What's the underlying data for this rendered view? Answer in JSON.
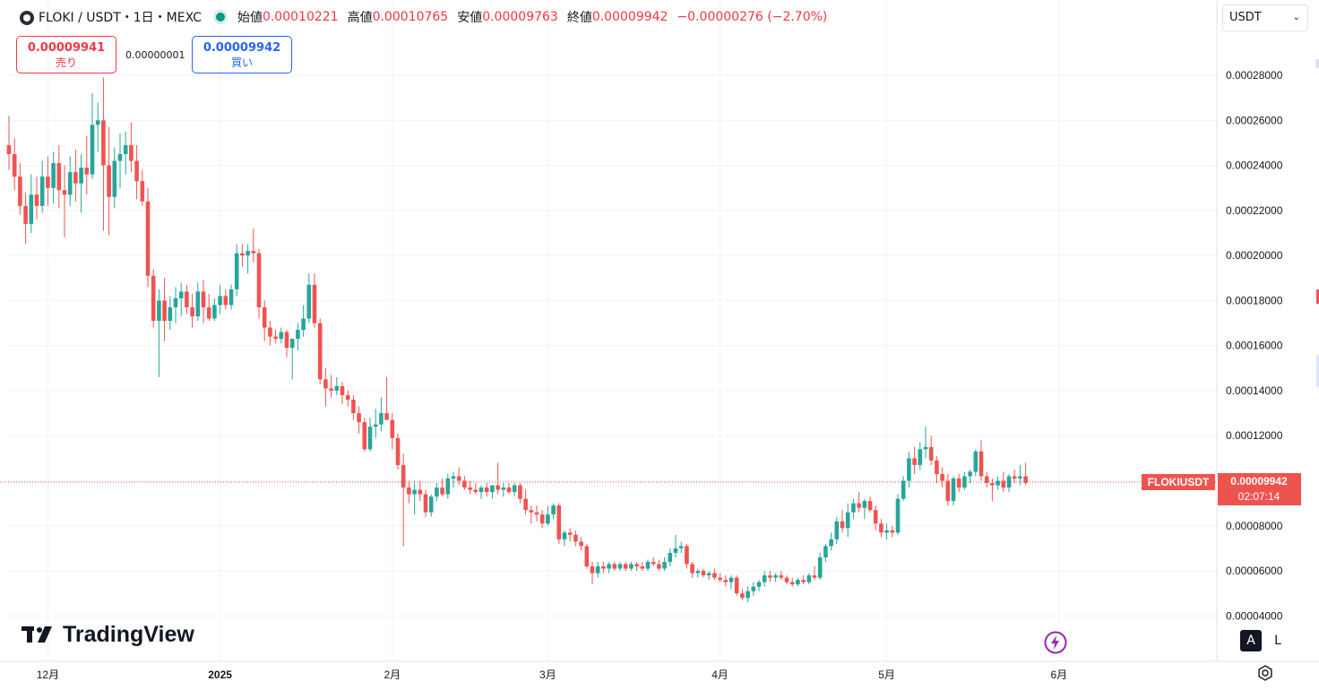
{
  "legend": {
    "symbol": "FLOKI / USDT・1日・MEXC",
    "open_label": "始値",
    "open": "0.00010221",
    "high_label": "高値",
    "high": "0.00010765",
    "low_label": "安値",
    "low": "0.00009763",
    "close_label": "終値",
    "close": "0.00009942",
    "change": "−0.00000276 (−2.70%)"
  },
  "trade": {
    "sell_price": "0.00009941",
    "sell_label": "売り",
    "spread": "0.00000001",
    "buy_price": "0.00009942",
    "buy_label": "買い"
  },
  "currency_selector": "USDT",
  "price_label": {
    "ticker": "FLOKIUSDT",
    "price": "0.00009942",
    "countdown": "02:07:14"
  },
  "branding": "TradingView",
  "scale_buttons": {
    "auto": "A",
    "log": "L"
  },
  "colors": {
    "up": "#26a69a",
    "down": "#ef5350",
    "grid": "#f0f3fa",
    "price_line": "#ef5350"
  },
  "chart_data": {
    "type": "candlestick",
    "title": "FLOKI / USDT・1日・MEXC",
    "ylim": [
      3e-05,
      0.000305
    ],
    "y_ticks": [
      "0.00004000",
      "0.00006000",
      "0.00008000",
      "0.00010000",
      "0.00012000",
      "0.00014000",
      "0.00016000",
      "0.00018000",
      "0.00020000",
      "0.00022000",
      "0.00024000",
      "0.00026000",
      "0.00028000"
    ],
    "y_tick_values": [
      4e-05,
      6e-05,
      8e-05,
      0.0001,
      0.00012,
      0.00014,
      0.00016,
      0.00018,
      0.0002,
      0.00022,
      0.00024,
      0.00026,
      0.00028
    ],
    "x_ticks": [
      {
        "label": "12月",
        "bar": 7
      },
      {
        "label": "2025",
        "bar": 38
      },
      {
        "label": "2月",
        "bar": 69
      },
      {
        "label": "3月",
        "bar": 97
      },
      {
        "label": "4月",
        "bar": 128
      },
      {
        "label": "5月",
        "bar": 158
      },
      {
        "label": "6月",
        "bar": 189
      }
    ],
    "bars_total_span": 194,
    "candles": [
      [
        0.000249,
        0.000262,
        0.000238,
        0.000245
      ],
      [
        0.000245,
        0.000252,
        0.000229,
        0.000235
      ],
      [
        0.000235,
        0.000241,
        0.000218,
        0.000222
      ],
      [
        0.000222,
        0.000228,
        0.000205,
        0.000214
      ],
      [
        0.000214,
        0.000236,
        0.00021,
        0.000227
      ],
      [
        0.000227,
        0.000235,
        0.000216,
        0.000222
      ],
      [
        0.000222,
        0.000242,
        0.000219,
        0.000235
      ],
      [
        0.000235,
        0.000244,
        0.000222,
        0.00023
      ],
      [
        0.00023,
        0.000246,
        0.000223,
        0.000241
      ],
      [
        0.000241,
        0.000249,
        0.000221,
        0.000229
      ],
      [
        0.000229,
        0.00024,
        0.000208,
        0.000227
      ],
      [
        0.000227,
        0.000244,
        0.000222,
        0.000237
      ],
      [
        0.000237,
        0.000247,
        0.000224,
        0.000232
      ],
      [
        0.000232,
        0.000245,
        0.000219,
        0.000239
      ],
      [
        0.000239,
        0.000253,
        0.000227,
        0.000236
      ],
      [
        0.000236,
        0.000272,
        0.000234,
        0.000258
      ],
      [
        0.000258,
        0.000268,
        0.000246,
        0.00026
      ],
      [
        0.00026,
        0.000279,
        0.000211,
        0.00024
      ],
      [
        0.00024,
        0.000257,
        0.000209,
        0.000226
      ],
      [
        0.000226,
        0.000248,
        0.000221,
        0.000242
      ],
      [
        0.000242,
        0.000254,
        0.00023,
        0.000245
      ],
      [
        0.000245,
        0.000255,
        0.000236,
        0.000249
      ],
      [
        0.000249,
        0.000259,
        0.000237,
        0.000242
      ],
      [
        0.000242,
        0.000249,
        0.000225,
        0.000233
      ],
      [
        0.000233,
        0.000238,
        0.000222,
        0.000224
      ],
      [
        0.000224,
        0.00023,
        0.000186,
        0.000191
      ],
      [
        0.000191,
        0.000194,
        0.000168,
        0.000171
      ],
      [
        0.000171,
        0.000185,
        0.000146,
        0.00018
      ],
      [
        0.00018,
        0.00019,
        0.000162,
        0.000171
      ],
      [
        0.000171,
        0.000182,
        0.000167,
        0.000177
      ],
      [
        0.000177,
        0.000186,
        0.00017,
        0.000181
      ],
      [
        0.000181,
        0.000188,
        0.000173,
        0.000184
      ],
      [
        0.000184,
        0.000187,
        0.000174,
        0.000177
      ],
      [
        0.000177,
        0.000183,
        0.000168,
        0.000173
      ],
      [
        0.000173,
        0.000188,
        0.000171,
        0.000184
      ],
      [
        0.000184,
        0.000189,
        0.00017,
        0.000177
      ],
      [
        0.000177,
        0.000183,
        0.000171,
        0.000172
      ],
      [
        0.000172,
        0.000181,
        0.000171,
        0.000178
      ],
      [
        0.000178,
        0.000187,
        0.000174,
        0.000182
      ],
      [
        0.000182,
        0.000185,
        0.000176,
        0.000178
      ],
      [
        0.000178,
        0.000187,
        0.000176,
        0.000185
      ],
      [
        0.000185,
        0.000205,
        0.000182,
        0.000201
      ],
      [
        0.000201,
        0.000205,
        0.000195,
        0.0002
      ],
      [
        0.0002,
        0.000205,
        0.000192,
        0.000202
      ],
      [
        0.000202,
        0.000212,
        0.000197,
        0.000201
      ],
      [
        0.000201,
        0.000203,
        0.000172,
        0.000177
      ],
      [
        0.000177,
        0.00018,
        0.000162,
        0.000168
      ],
      [
        0.000168,
        0.000171,
        0.00016,
        0.000164
      ],
      [
        0.000164,
        0.000167,
        0.000161,
        0.000163
      ],
      [
        0.000163,
        0.000168,
        0.000161,
        0.000166
      ],
      [
        0.000166,
        0.000167,
        0.000155,
        0.000159
      ],
      [
        0.000159,
        0.000163,
        0.000145,
        0.000163
      ],
      [
        0.000163,
        0.00017,
        0.000158,
        0.000167
      ],
      [
        0.000167,
        0.000178,
        0.000164,
        0.000172
      ],
      [
        0.000172,
        0.000192,
        0.00017,
        0.000187
      ],
      [
        0.000187,
        0.000192,
        0.000168,
        0.00017
      ],
      [
        0.00017,
        0.000172,
        0.000143,
        0.000145
      ],
      [
        0.000145,
        0.00015,
        0.000133,
        0.000141
      ],
      [
        0.000141,
        0.000147,
        0.000137,
        0.00014
      ],
      [
        0.00014,
        0.000146,
        0.000138,
        0.000142
      ],
      [
        0.000142,
        0.000144,
        0.000134,
        0.000138
      ],
      [
        0.000138,
        0.00014,
        0.000133,
        0.000136
      ],
      [
        0.000136,
        0.000138,
        0.000127,
        0.00013
      ],
      [
        0.00013,
        0.000133,
        0.000121,
        0.000126
      ],
      [
        0.000126,
        0.000128,
        0.000113,
        0.000114
      ],
      [
        0.000114,
        0.000128,
        0.000113,
        0.000124
      ],
      [
        0.000124,
        0.000132,
        0.000119,
        0.000125
      ],
      [
        0.000125,
        0.000137,
        0.000122,
        0.00013
      ],
      [
        0.00013,
        0.000146,
        0.000128,
        0.000127
      ],
      [
        0.000127,
        0.00013,
        0.000114,
        0.000119
      ],
      [
        0.000119,
        0.000121,
        0.000105,
        0.000107
      ],
      [
        0.000107,
        0.000112,
        7.1e-05,
        9.7e-05
      ],
      [
        9.7e-05,
        0.0001,
        9e-05,
        9.4e-05
      ],
      [
        9.4e-05,
        0.0001,
        8.5e-05,
        9.6e-05
      ],
      [
        9.6e-05,
        0.0001,
        9.1e-05,
        9.4e-05
      ],
      [
        9.4e-05,
        9.6e-05,
        8.4e-05,
        8.6e-05
      ],
      [
        8.6e-05,
        9.4e-05,
        8.4e-05,
        9.3e-05
      ],
      [
        9.3e-05,
        9.9e-05,
        9.1e-05,
        9.7e-05
      ],
      [
        9.7e-05,
        0.000101,
        9.3e-05,
        9.4e-05
      ],
      [
        9.4e-05,
        0.000103,
        9.2e-05,
        0.000101
      ],
      [
        0.000101,
        0.000104,
        9.7e-05,
        0.000102
      ],
      [
        0.000102,
        0.000106,
        9.8e-05,
        0.0001
      ],
      [
        0.0001,
        0.000102,
        9.6e-05,
        9.7e-05
      ],
      [
        9.7e-05,
        0.0001,
        9.4e-05,
        9.6e-05
      ],
      [
        9.6e-05,
        9.9e-05,
        9.4e-05,
        9.5e-05
      ],
      [
        9.5e-05,
        9.8e-05,
        9.2e-05,
        9.7e-05
      ],
      [
        9.7e-05,
        9.9e-05,
        9.3e-05,
        9.5e-05
      ],
      [
        9.5e-05,
        9.8e-05,
        9.2e-05,
        9.8e-05
      ],
      [
        9.8e-05,
        0.000108,
        9.4e-05,
        9.6e-05
      ],
      [
        9.6e-05,
        9.9e-05,
        9.3e-05,
        9.7e-05
      ],
      [
        9.7e-05,
        9.9e-05,
        9.4e-05,
        9.5e-05
      ],
      [
        9.5e-05,
        9.9e-05,
        9.3e-05,
        9.8e-05
      ],
      [
        9.8e-05,
        9.9e-05,
        9e-05,
        9.2e-05
      ],
      [
        9.2e-05,
        9.6e-05,
        8.5e-05,
        8.7e-05
      ],
      [
        8.7e-05,
        8.9e-05,
        8.1e-05,
        8.6e-05
      ],
      [
        8.6e-05,
        8.9e-05,
        8.2e-05,
        8.5e-05
      ],
      [
        8.5e-05,
        8.7e-05,
        7.9e-05,
        8.1e-05
      ],
      [
        8.1e-05,
        8.9e-05,
        8e-05,
        8.5e-05
      ],
      [
        8.5e-05,
        9e-05,
        8.3e-05,
        8.9e-05
      ],
      [
        8.9e-05,
        9e-05,
        7.2e-05,
        7.4e-05
      ],
      [
        7.4e-05,
        7.8e-05,
        7.1e-05,
        7.7e-05
      ],
      [
        7.7e-05,
        7.9e-05,
        7.3e-05,
        7.6e-05
      ],
      [
        7.6e-05,
        7.8e-05,
        7.1e-05,
        7.3e-05
      ],
      [
        7.3e-05,
        7.5e-05,
        6.9e-05,
        7.1e-05
      ],
      [
        7.1e-05,
        7.2e-05,
        6.1e-05,
        6.2e-05
      ],
      [
        6.2e-05,
        6.4e-05,
        5.4e-05,
        5.9e-05
      ],
      [
        5.9e-05,
        6.4e-05,
        5.7e-05,
        6.2e-05
      ],
      [
        6.2e-05,
        6.4e-05,
        5.9e-05,
        6.1e-05
      ],
      [
        6.1e-05,
        6.4e-05,
        5.9e-05,
        6.3e-05
      ],
      [
        6.3e-05,
        6.4e-05,
        6e-05,
        6.1e-05
      ],
      [
        6.1e-05,
        6.4e-05,
        6e-05,
        6.3e-05
      ],
      [
        6.3e-05,
        6.4e-05,
        6e-05,
        6.1e-05
      ],
      [
        6.1e-05,
        6.4e-05,
        6e-05,
        6.3e-05
      ],
      [
        6.3e-05,
        6.4e-05,
        6e-05,
        6.2e-05
      ],
      [
        6.2e-05,
        6.4e-05,
        6e-05,
        6.1e-05
      ],
      [
        6.1e-05,
        6.5e-05,
        6e-05,
        6.4e-05
      ],
      [
        6.4e-05,
        6.6e-05,
        6.2e-05,
        6.3e-05
      ],
      [
        6.3e-05,
        6.5e-05,
        6e-05,
        6.1e-05
      ],
      [
        6.1e-05,
        6.6e-05,
        6e-05,
        6.4e-05
      ],
      [
        6.4e-05,
        7e-05,
        6.2e-05,
        6.8e-05
      ],
      [
        6.8e-05,
        7.6e-05,
        6.6e-05,
        7e-05
      ],
      [
        7e-05,
        7.3e-05,
        6.8e-05,
        7.1e-05
      ],
      [
        7.1e-05,
        7.2e-05,
        6.1e-05,
        6.3e-05
      ],
      [
        6.3e-05,
        6.4e-05,
        5.7e-05,
        5.9e-05
      ],
      [
        5.9e-05,
        6.1e-05,
        5.7e-05,
        6e-05
      ],
      [
        6e-05,
        6.1e-05,
        5.7e-05,
        5.8e-05
      ],
      [
        5.8e-05,
        6e-05,
        5.6e-05,
        5.9e-05
      ],
      [
        5.9e-05,
        6.1e-05,
        5.6e-05,
        5.7e-05
      ],
      [
        5.7e-05,
        5.9e-05,
        5.5e-05,
        5.6e-05
      ],
      [
        5.6e-05,
        5.8e-05,
        5.3e-05,
        5.5e-05
      ],
      [
        5.5e-05,
        5.8e-05,
        5.2e-05,
        5.7e-05
      ],
      [
        5.7e-05,
        5.8e-05,
        4.9e-05,
        5e-05
      ],
      [
        5e-05,
        5.2e-05,
        4.7e-05,
        4.8e-05
      ],
      [
        4.8e-05,
        5.3e-05,
        4.6e-05,
        5.1e-05
      ],
      [
        5.1e-05,
        5.5e-05,
        4.9e-05,
        5.3e-05
      ],
      [
        5.3e-05,
        5.6e-05,
        5.1e-05,
        5.5e-05
      ],
      [
        5.5e-05,
        6e-05,
        5.3e-05,
        5.8e-05
      ],
      [
        5.8e-05,
        6e-05,
        5.5e-05,
        5.7e-05
      ],
      [
        5.7e-05,
        5.9e-05,
        5.5e-05,
        5.8e-05
      ],
      [
        5.8e-05,
        6e-05,
        5.6e-05,
        5.7e-05
      ],
      [
        5.7e-05,
        5.8e-05,
        5.4e-05,
        5.5e-05
      ],
      [
        5.5e-05,
        5.7e-05,
        5.3e-05,
        5.4e-05
      ],
      [
        5.4e-05,
        5.7e-05,
        5.3e-05,
        5.6e-05
      ],
      [
        5.6e-05,
        5.8e-05,
        5.4e-05,
        5.5e-05
      ],
      [
        5.5e-05,
        5.9e-05,
        5.4e-05,
        5.8e-05
      ],
      [
        5.8e-05,
        6.2e-05,
        5.6e-05,
        5.7e-05
      ],
      [
        5.7e-05,
        6.8e-05,
        5.6e-05,
        6.6e-05
      ],
      [
        6.6e-05,
        7.2e-05,
        6.4e-05,
        7.1e-05
      ],
      [
        7.1e-05,
        7.7e-05,
        6.9e-05,
        7.4e-05
      ],
      [
        7.4e-05,
        8.4e-05,
        7.2e-05,
        8.2e-05
      ],
      [
        8.2e-05,
        8.7e-05,
        7.7e-05,
        7.9e-05
      ],
      [
        7.9e-05,
        9e-05,
        7.5e-05,
        8.6e-05
      ],
      [
        8.6e-05,
        9.2e-05,
        8.3e-05,
        9e-05
      ],
      [
        9e-05,
        9.5e-05,
        8.6e-05,
        8.8e-05
      ],
      [
        8.8e-05,
        9.2e-05,
        8.3e-05,
        9.1e-05
      ],
      [
        9.1e-05,
        9.3e-05,
        8.6e-05,
        8.7e-05
      ],
      [
        8.7e-05,
        8.9e-05,
        7.8e-05,
        8.1e-05
      ],
      [
        8.1e-05,
        8.3e-05,
        7.5e-05,
        7.7e-05
      ],
      [
        7.7e-05,
        8.1e-05,
        7.4e-05,
        7.8e-05
      ],
      [
        7.8e-05,
        8e-05,
        7.5e-05,
        7.7e-05
      ],
      [
        7.7e-05,
        9.4e-05,
        7.6e-05,
        9.2e-05
      ],
      [
        9.2e-05,
        0.000102,
        9.1e-05,
        0.0001
      ],
      [
        0.0001,
        0.000113,
        9.7e-05,
        0.00011
      ],
      [
        0.00011,
        0.000115,
        0.000103,
        0.000107
      ],
      [
        0.000107,
        0.000117,
        0.000105,
        0.000114
      ],
      [
        0.000114,
        0.000124,
        0.00011,
        0.000115
      ],
      [
        0.000115,
        0.00012,
        0.000107,
        0.000109
      ],
      [
        0.000109,
        0.000111,
        9.9e-05,
        0.000103
      ],
      [
        0.000103,
        0.000106,
        9.7e-05,
        0.0001
      ],
      [
        0.0001,
        0.000103,
        8.9e-05,
        9.1e-05
      ],
      [
        9.1e-05,
        0.000102,
        8.9e-05,
        0.000101
      ],
      [
        0.000101,
        0.000103,
        9.5e-05,
        9.7e-05
      ],
      [
        9.7e-05,
        0.000104,
        9.6e-05,
        0.000102
      ],
      [
        0.000102,
        0.000105,
        9.9e-05,
        0.000104
      ],
      [
        0.000104,
        0.000114,
        0.000102,
        0.000113
      ],
      [
        0.000113,
        0.000118,
        0.0001,
        0.000102
      ],
      [
        0.000102,
        0.000104,
        9.7e-05,
        9.9e-05
      ],
      [
        9.9e-05,
        0.000101,
        9.1e-05,
        9.8e-05
      ],
      [
        9.8e-05,
        0.000102,
        9.6e-05,
        0.0001
      ],
      [
        0.0001,
        0.000104,
        9.5e-05,
        9.7e-05
      ],
      [
        9.7e-05,
        0.000103,
        9.5e-05,
        0.000102
      ],
      [
        0.000102,
        0.000105,
        9.9e-05,
        0.000101
      ],
      [
        0.000101,
        0.000107,
        9.8e-05,
        0.000102
      ],
      [
        0.000102,
        0.000108,
        9.8e-05,
        9.9e-05
      ]
    ],
    "last_price": 9.942e-05
  }
}
